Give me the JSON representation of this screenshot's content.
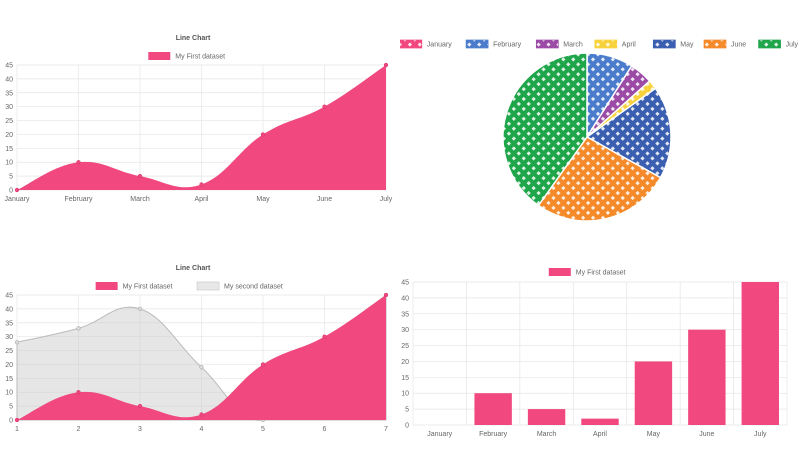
{
  "chart_data": [
    {
      "type": "area",
      "title": "Line Chart",
      "categories": [
        "January",
        "February",
        "March",
        "April",
        "May",
        "June",
        "July"
      ],
      "series": [
        {
          "name": "My First dataset",
          "values": [
            0,
            10,
            5,
            2,
            20,
            30,
            45
          ],
          "color": "#f0487f"
        }
      ],
      "ylim": [
        0,
        45
      ],
      "yticks": [
        0,
        5,
        10,
        15,
        20,
        25,
        30,
        35,
        40,
        45
      ],
      "grid": true,
      "legend": "top"
    },
    {
      "type": "pie",
      "categories": [
        "January",
        "February",
        "March",
        "April",
        "May",
        "June",
        "July"
      ],
      "values": [
        0,
        10,
        5,
        2,
        20,
        30,
        45
      ],
      "colors": [
        "#f0487f",
        "#4a7ccb",
        "#9b4aa6",
        "#f7d23c",
        "#3a5fb0",
        "#f58a2b",
        "#1fa54a"
      ],
      "legend": "top"
    },
    {
      "type": "area",
      "title": "Line Chart",
      "categories": [
        "1",
        "2",
        "3",
        "4",
        "5",
        "6",
        "7"
      ],
      "series": [
        {
          "name": "My First dataset",
          "values": [
            0,
            10,
            5,
            2,
            20,
            30,
            45
          ],
          "color": "#f0487f"
        },
        {
          "name": "My second dataset",
          "values": [
            28,
            33,
            40,
            19,
            0,
            27,
            45
          ],
          "color": "#cccccc"
        }
      ],
      "ylim": [
        0,
        45
      ],
      "yticks": [
        0,
        5,
        10,
        15,
        20,
        25,
        30,
        35,
        40,
        45
      ],
      "grid": true,
      "legend": "top"
    },
    {
      "type": "bar",
      "categories": [
        "January",
        "February",
        "March",
        "April",
        "May",
        "June",
        "July"
      ],
      "series": [
        {
          "name": "My First dataset",
          "values": [
            0,
            10,
            5,
            2,
            20,
            30,
            45
          ],
          "color": "#f0487f"
        }
      ],
      "ylim": [
        0,
        45
      ],
      "yticks": [
        0,
        5,
        10,
        15,
        20,
        25,
        30,
        35,
        40,
        45
      ],
      "grid": true,
      "legend": "top"
    }
  ]
}
